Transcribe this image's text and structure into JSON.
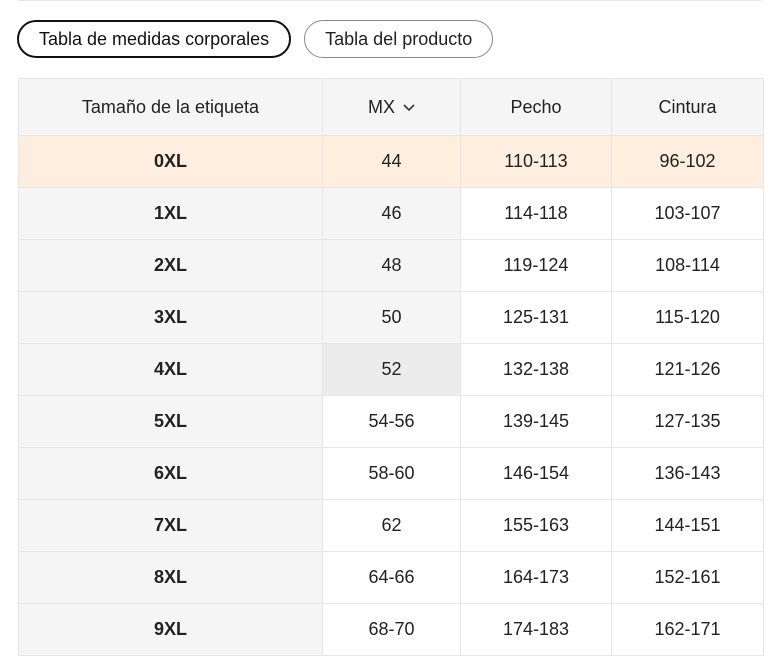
{
  "tabs": [
    "Tabla de medidas corporales",
    "Tabla del producto"
  ],
  "table": {
    "header": [
      "Tamaño de la etiqueta",
      "MX",
      "Pecho",
      "Cintura"
    ],
    "rows": [
      [
        "0XL",
        "44",
        "110-113",
        "96-102"
      ],
      [
        "1XL",
        "46",
        "114-118",
        "103-107"
      ],
      [
        "2XL",
        "48",
        "119-124",
        "108-114"
      ],
      [
        "3XL",
        "50",
        "125-131",
        "115-120"
      ],
      [
        "4XL",
        "52",
        "132-138",
        "121-126"
      ],
      [
        "5XL",
        "54-56",
        "139-145",
        "127-135"
      ],
      [
        "6XL",
        "58-60",
        "146-154",
        "136-143"
      ],
      [
        "7XL",
        "62",
        "155-163",
        "144-151"
      ],
      [
        "8XL",
        "64-66",
        "164-173",
        "152-161"
      ],
      [
        "9XL",
        "68-70",
        "174-183",
        "162-171"
      ]
    ]
  }
}
